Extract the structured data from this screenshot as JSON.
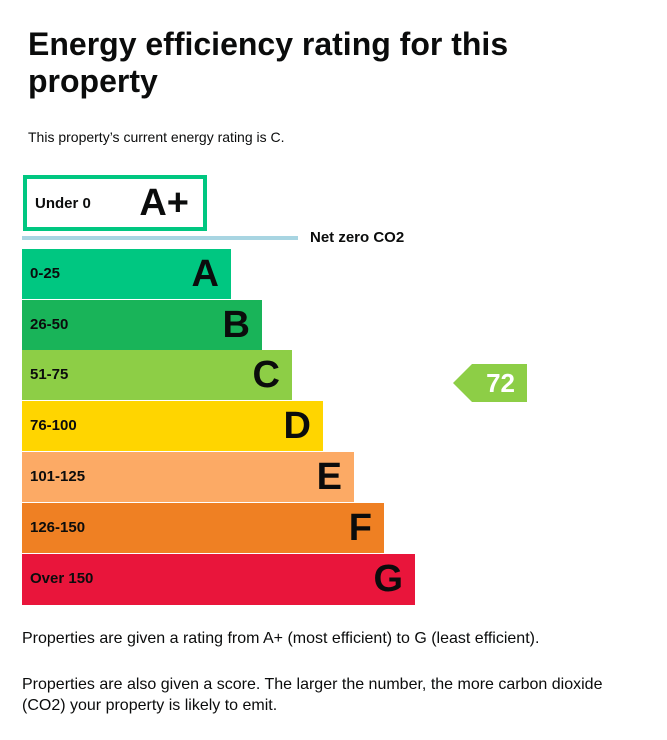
{
  "title": "Energy efficiency rating for this property",
  "intro": "This property’s current energy rating is C.",
  "top_band": {
    "range": "Under 0",
    "letter": "A+",
    "color": "#00c781"
  },
  "net_zero": {
    "label": "Net zero CO2",
    "color": "#a8d5e2"
  },
  "bands": [
    {
      "range": "0-25",
      "letter": "A",
      "color": "#00c781"
    },
    {
      "range": "26-50",
      "letter": "B",
      "color": "#19b459"
    },
    {
      "range": "51-75",
      "letter": "C",
      "color": "#8dce46"
    },
    {
      "range": "76-100",
      "letter": "D",
      "color": "#ffd500"
    },
    {
      "range": "101-125",
      "letter": "E",
      "color": "#fcaa65"
    },
    {
      "range": "126-150",
      "letter": "F",
      "color": "#ef8023"
    },
    {
      "range": "Over 150",
      "letter": "G",
      "color": "#e9153b"
    }
  ],
  "current": {
    "score": "72",
    "band": "C",
    "color": "#8dce46"
  },
  "para1": "Properties are given a rating from A+ (most efficient) to G (least efficient).",
  "para2": "Properties are also given a score. The larger the number, the more carbon dioxide (CO2) your property is likely to emit."
}
